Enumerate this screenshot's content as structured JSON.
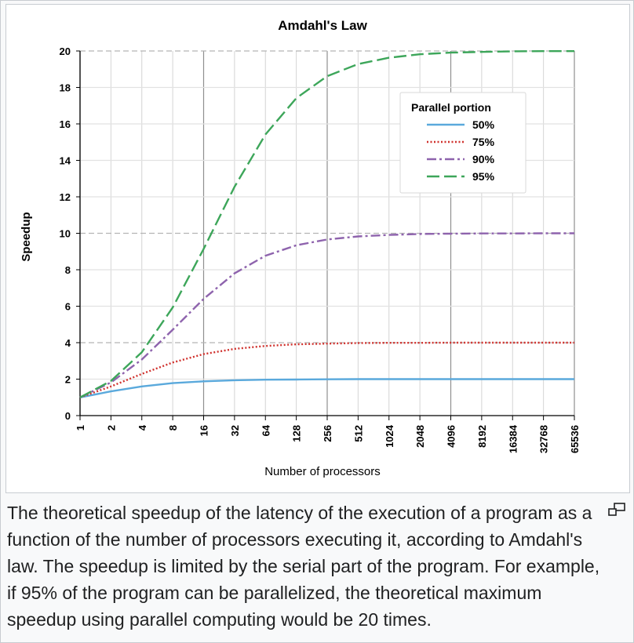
{
  "figure": {
    "caption": "The theoretical speedup of the latency of the execution of a program as a function of the number of processors executing it, according to Amdahl's law. The speedup is limited by the serial part of the program. For example, if 95% of the program can be parallelized, the theoretical maximum speedup using parallel computing would be 20 times.",
    "enlarge_icon": "enlarge-icon"
  },
  "chart_data": {
    "type": "line",
    "title": "Amdahl's Law",
    "xlabel": "Number of processors",
    "ylabel": "Speedup",
    "x_scale": "log2",
    "x": [
      1,
      2,
      4,
      8,
      16,
      32,
      64,
      128,
      256,
      512,
      1024,
      2048,
      4096,
      8192,
      16384,
      32768,
      65536
    ],
    "x_tick_labels": [
      "1",
      "2",
      "4",
      "8",
      "16",
      "32",
      "64",
      "128",
      "256",
      "512",
      "1024",
      "2048",
      "4096",
      "8192",
      "16384",
      "32768",
      "65536"
    ],
    "ylim": [
      0,
      20
    ],
    "y_ticks": [
      0,
      2,
      4,
      6,
      8,
      10,
      12,
      14,
      16,
      18,
      20
    ],
    "grid": true,
    "legend_title": "Parallel portion",
    "legend_position": "top-right",
    "series": [
      {
        "name": "50%",
        "color": "#5aa9dc",
        "dash": "solid",
        "values": [
          1.0,
          1.33,
          1.6,
          1.78,
          1.88,
          1.94,
          1.97,
          1.98,
          1.99,
          2.0,
          2.0,
          2.0,
          2.0,
          2.0,
          2.0,
          2.0,
          2.0
        ]
      },
      {
        "name": "75%",
        "color": "#d0312d",
        "dash": "dotted",
        "values": [
          1.0,
          1.6,
          2.29,
          2.91,
          3.37,
          3.66,
          3.82,
          3.91,
          3.95,
          3.98,
          3.99,
          3.99,
          4.0,
          4.0,
          4.0,
          4.0,
          4.0
        ]
      },
      {
        "name": "90%",
        "color": "#8e63ad",
        "dash": "dashdot",
        "values": [
          1.0,
          1.82,
          3.08,
          4.71,
          6.4,
          7.8,
          8.77,
          9.34,
          9.66,
          9.83,
          9.91,
          9.96,
          9.98,
          9.99,
          9.99,
          10.0,
          10.0
        ]
      },
      {
        "name": "95%",
        "color": "#3da65a",
        "dash": "dashed",
        "values": [
          1.0,
          1.9,
          3.48,
          5.93,
          9.14,
          12.55,
          15.42,
          17.41,
          18.62,
          19.28,
          19.63,
          19.82,
          19.91,
          19.95,
          19.98,
          19.99,
          19.99
        ]
      }
    ]
  }
}
